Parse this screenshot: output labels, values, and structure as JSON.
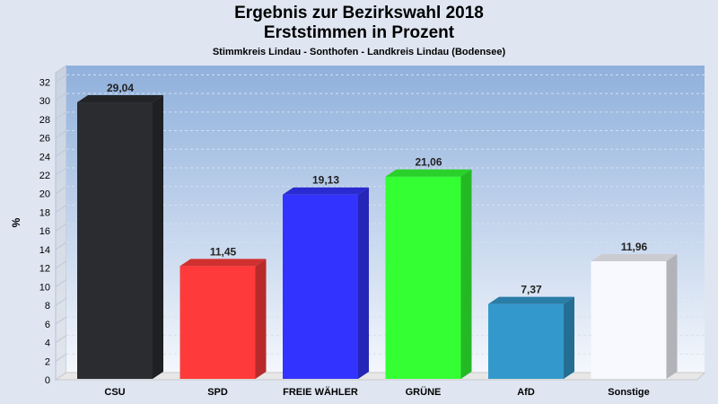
{
  "chart_data": {
    "type": "bar",
    "title": "Ergebnis zur Bezirkswahl 2018",
    "subtitle": "Erststimmen in Prozent",
    "subsubtitle": "Stimmkreis Lindau - Sonthofen - Landkreis Lindau (Bodensee)",
    "xlabel": "",
    "ylabel": "%",
    "ylim": [
      0,
      33
    ],
    "yticks": [
      0,
      2,
      4,
      6,
      8,
      10,
      12,
      14,
      16,
      18,
      20,
      22,
      24,
      26,
      28,
      30,
      32
    ],
    "grid": true,
    "categories": [
      "CSU",
      "SPD",
      "FREIE WÄHLER",
      "GRÜNE",
      "AfD",
      "Sonstige"
    ],
    "values": [
      29.04,
      11.45,
      19.13,
      21.06,
      7.37,
      11.96
    ],
    "value_labels": [
      "29,04",
      "11,45",
      "19,13",
      "21,06",
      "7,37",
      "11,96"
    ],
    "colors": [
      "#2a2c30",
      "#ff3a3a",
      "#3333ff",
      "#33ff33",
      "#3399cc",
      "#f7f9ff"
    ]
  }
}
